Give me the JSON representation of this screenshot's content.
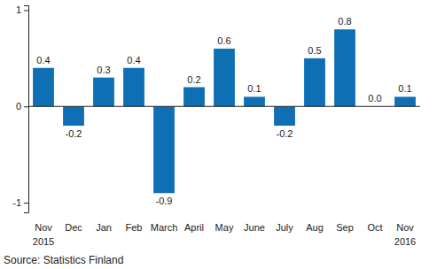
{
  "chart_data": {
    "type": "bar",
    "categories": [
      "Nov 2015",
      "Dec",
      "Jan",
      "Feb",
      "March",
      "April",
      "May",
      "June",
      "July",
      "Aug",
      "Sep",
      "Oct",
      "Nov 2016"
    ],
    "values": [
      0.4,
      -0.2,
      0.3,
      0.4,
      -0.9,
      0.2,
      0.6,
      0.1,
      -0.2,
      0.5,
      0.8,
      0.0,
      0.1
    ],
    "value_labels": [
      "0.4",
      "-0.2",
      "0.3",
      "0.4",
      "-0.9",
      "0.2",
      "0.6",
      "0.1",
      "-0.2",
      "0.5",
      "0.8",
      "0.0",
      "0.1"
    ],
    "color": "#0f6fb4",
    "ylim": [
      -1.1,
      1.05
    ],
    "yticks": [
      -1,
      0,
      1
    ],
    "data_labels": true,
    "grid": false,
    "source": "Source: Statistics Finland"
  }
}
